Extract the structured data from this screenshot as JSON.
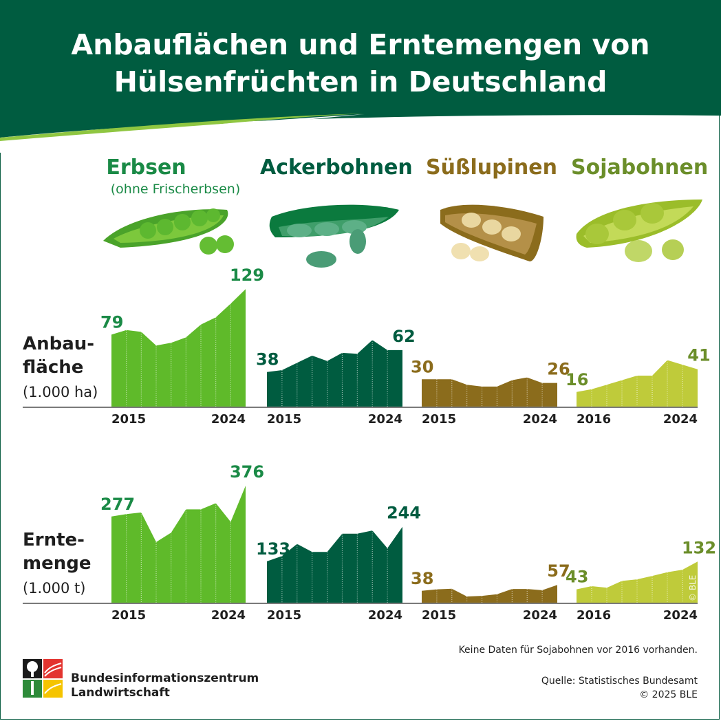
{
  "title_line1": "Anbauflächen und Erntemengen von",
  "title_line2": "Hülsenfrüchten in Deutschland",
  "colors": {
    "header": "#005c40",
    "erbsen": "#5fba2a",
    "ackerbohnen": "#005c40",
    "suesslupinen": "#8b6c1c",
    "sojabohnen": "#bfcb3a",
    "erbsen_text": "#1a8a46",
    "ackerbohnen_text": "#005c40",
    "suesslupinen_text": "#8b6c1c",
    "sojabohnen_text": "#6b8e2a"
  },
  "crops": [
    {
      "name": "Erbsen",
      "subtitle": "(ohne Frischerbsen)",
      "icon": "pea-pod-icon"
    },
    {
      "name": "Ackerbohnen",
      "subtitle": "",
      "icon": "broad-bean-pod-icon"
    },
    {
      "name": "Süßlupinen",
      "subtitle": "",
      "icon": "lupin-pod-icon"
    },
    {
      "name": "Sojabohnen",
      "subtitle": "",
      "icon": "soybean-pod-icon"
    }
  ],
  "rows": {
    "area": {
      "label_line1": "Anbau-",
      "label_line2": "fläche",
      "unit": "(1.000 ha)"
    },
    "harvest": {
      "label_line1": "Ernte-",
      "label_line2": "menge",
      "unit": "(1.000 t)"
    }
  },
  "chart_data": [
    {
      "type": "area",
      "crop": "Erbsen",
      "metric": "Anbaufläche",
      "x": [
        2015,
        2016,
        2017,
        2018,
        2019,
        2020,
        2021,
        2022,
        2023,
        2024
      ],
      "values": [
        79,
        84,
        82,
        67,
        70,
        76,
        90,
        98,
        113,
        129
      ],
      "first_label": "79",
      "last_label": "129",
      "start_tick": "2015",
      "end_tick": "2024"
    },
    {
      "type": "area",
      "crop": "Ackerbohnen",
      "metric": "Anbaufläche",
      "x": [
        2015,
        2016,
        2017,
        2018,
        2019,
        2020,
        2021,
        2022,
        2023,
        2024
      ],
      "values": [
        38,
        40,
        48,
        56,
        50,
        59,
        58,
        73,
        62,
        62
      ],
      "first_label": "38",
      "last_label": "62",
      "start_tick": "2015",
      "end_tick": "2024"
    },
    {
      "type": "area",
      "crop": "Süßlupinen",
      "metric": "Anbaufläche",
      "x": [
        2015,
        2016,
        2017,
        2018,
        2019,
        2020,
        2021,
        2022,
        2023,
        2024
      ],
      "values": [
        30,
        30,
        30,
        24,
        22,
        22,
        29,
        32,
        26,
        26
      ],
      "first_label": "30",
      "last_label": "26",
      "start_tick": "2015",
      "end_tick": "2024"
    },
    {
      "type": "area",
      "crop": "Sojabohnen",
      "metric": "Anbaufläche",
      "x": [
        2016,
        2017,
        2018,
        2019,
        2020,
        2021,
        2022,
        2023,
        2024
      ],
      "values": [
        16,
        19,
        24,
        29,
        34,
        34,
        51,
        46,
        41
      ],
      "first_label": "16",
      "last_label": "41",
      "start_tick": "2016",
      "end_tick": "2024"
    },
    {
      "type": "area",
      "crop": "Erbsen",
      "metric": "Erntemenge",
      "x": [
        2015,
        2016,
        2017,
        2018,
        2019,
        2020,
        2021,
        2022,
        2023,
        2024
      ],
      "values": [
        277,
        285,
        290,
        195,
        225,
        300,
        300,
        320,
        260,
        376
      ],
      "first_label": "277",
      "last_label": "376",
      "start_tick": "2015",
      "end_tick": "2024"
    },
    {
      "type": "area",
      "crop": "Ackerbohnen",
      "metric": "Erntemenge",
      "x": [
        2015,
        2016,
        2017,
        2018,
        2019,
        2020,
        2021,
        2022,
        2023,
        2024
      ],
      "values": [
        133,
        150,
        189,
        163,
        163,
        222,
        222,
        232,
        175,
        244
      ],
      "first_label": "133",
      "last_label": "244",
      "start_tick": "2015",
      "end_tick": "2024"
    },
    {
      "type": "area",
      "crop": "Süßlupinen",
      "metric": "Erntemenge",
      "x": [
        2015,
        2016,
        2017,
        2018,
        2019,
        2020,
        2021,
        2022,
        2023,
        2024
      ],
      "values": [
        38,
        43,
        45,
        20,
        22,
        27,
        44,
        44,
        40,
        57
      ],
      "first_label": "38",
      "last_label": "57",
      "start_tick": "2015",
      "end_tick": "2024"
    },
    {
      "type": "area",
      "crop": "Sojabohnen",
      "metric": "Erntemenge",
      "x": [
        2016,
        2017,
        2018,
        2019,
        2020,
        2021,
        2022,
        2023,
        2024
      ],
      "values": [
        43,
        53,
        48,
        70,
        75,
        86,
        98,
        106,
        132
      ],
      "first_label": "43",
      "last_label": "132",
      "start_tick": "2016",
      "end_tick": "2024"
    }
  ],
  "footnote": "Keine Daten für Sojabohnen vor 2016 vorhanden.",
  "source_line1": "Quelle: Statistisches Bundesamt",
  "source_line2": "© 2025 BLE",
  "watermark": "© BLE",
  "logo_line1": "Bundesinformationszentrum",
  "logo_line2": "Landwirtschaft"
}
